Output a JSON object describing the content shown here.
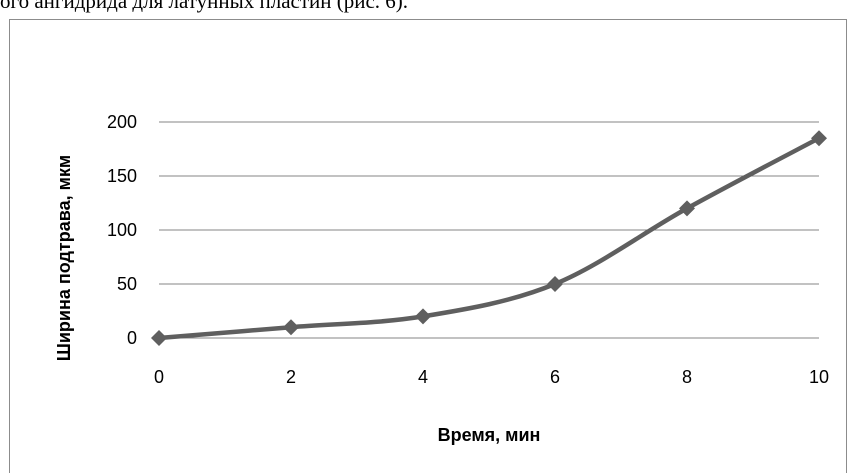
{
  "document": {
    "top_text": "ого ангидрида для латунных пластин (рис. 6)."
  },
  "chart_data": {
    "type": "line",
    "x": [
      0,
      2,
      4,
      6,
      8,
      10
    ],
    "series": [
      {
        "values": [
          0,
          10,
          20,
          50,
          120,
          185
        ]
      }
    ],
    "x_ticks": [
      0,
      2,
      4,
      6,
      8,
      10
    ],
    "y_ticks": [
      0,
      50,
      100,
      150,
      200
    ],
    "xlabel": "Время, мин",
    "ylabel": "Ширина подтрава, мкм",
    "xlim": [
      0,
      10
    ],
    "ylim": [
      0,
      200
    ],
    "grid": "horizontal",
    "legend": "none",
    "line_smooth": true,
    "marker": "diamond",
    "colors": {
      "series": "#5f5f5f",
      "grid": "#868686",
      "frame": "#8c8c8c"
    }
  }
}
